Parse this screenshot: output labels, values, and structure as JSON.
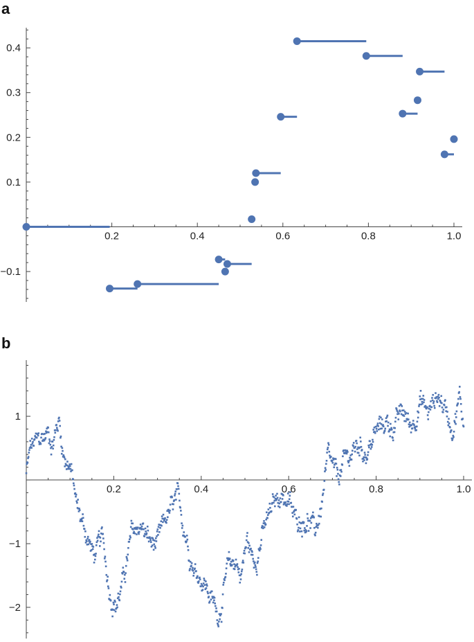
{
  "colors": {
    "series": "#4f74b2",
    "axis": "#444444",
    "text": "#222222"
  },
  "chart_data": [
    {
      "panel_label": "a",
      "type": "step-segments",
      "title": "",
      "xlabel": "",
      "ylabel": "",
      "xlim": [
        0,
        1.02
      ],
      "ylim": [
        -0.17,
        0.44
      ],
      "x_ticks": [
        0.2,
        0.4,
        0.6,
        0.8,
        1.0
      ],
      "x_tick_labels": [
        "0.2",
        "0.4",
        "0.6",
        "0.8",
        "1.0"
      ],
      "y_ticks": [
        -0.1,
        0.1,
        0.2,
        0.3,
        0.4
      ],
      "y_tick_labels": [
        "−0.1",
        "0.1",
        "0.2",
        "0.3",
        "0.4"
      ],
      "segments": [
        {
          "x_start": 0.0,
          "x_end": 0.195,
          "y": 0.0
        },
        {
          "x_start": 0.195,
          "x_end": 0.26,
          "y": -0.138
        },
        {
          "x_start": 0.26,
          "x_end": 0.45,
          "y": -0.128
        },
        {
          "x_start": 0.45,
          "x_end": 0.465,
          "y": -0.073
        },
        {
          "x_start": 0.465,
          "x_end": 0.47,
          "y": -0.1
        },
        {
          "x_start": 0.47,
          "x_end": 0.527,
          "y": -0.083
        },
        {
          "x_start": 0.527,
          "x_end": 0.535,
          "y": 0.017
        },
        {
          "x_start": 0.535,
          "x_end": 0.537,
          "y": 0.1
        },
        {
          "x_start": 0.537,
          "x_end": 0.595,
          "y": 0.12
        },
        {
          "x_start": 0.595,
          "x_end": 0.633,
          "y": 0.246
        },
        {
          "x_start": 0.633,
          "x_end": 0.795,
          "y": 0.415
        },
        {
          "x_start": 0.795,
          "x_end": 0.88,
          "y": 0.382
        },
        {
          "x_start": 0.88,
          "x_end": 0.915,
          "y": 0.253
        },
        {
          "x_start": 0.915,
          "x_end": 0.92,
          "y": 0.283
        },
        {
          "x_start": 0.92,
          "x_end": 0.978,
          "y": 0.347
        },
        {
          "x_start": 0.978,
          "x_end": 1.0,
          "y": 0.162
        },
        {
          "x_start": 1.0,
          "x_end": 1.0,
          "y": 0.196
        }
      ]
    },
    {
      "panel_label": "b",
      "type": "scatter",
      "title": "",
      "xlabel": "",
      "ylabel": "",
      "xlim": [
        0,
        1.0
      ],
      "ylim": [
        -2.45,
        1.85
      ],
      "x_ticks": [
        0.2,
        0.4,
        0.6,
        0.8,
        1.0
      ],
      "x_tick_labels": [
        "0.2",
        "0.4",
        "0.6",
        "0.8",
        "1.0"
      ],
      "y_ticks": [
        -2,
        -1,
        1
      ],
      "y_tick_labels": [
        "−2",
        "−1",
        "1"
      ],
      "n_points": 1000,
      "trend_knots": [
        [
          0.0,
          0.1
        ],
        [
          0.01,
          0.5
        ],
        [
          0.03,
          0.6
        ],
        [
          0.05,
          0.75
        ],
        [
          0.06,
          0.6
        ],
        [
          0.075,
          0.95
        ],
        [
          0.085,
          0.4
        ],
        [
          0.1,
          0.25
        ],
        [
          0.115,
          -0.4
        ],
        [
          0.13,
          -0.7
        ],
        [
          0.155,
          -1.2
        ],
        [
          0.175,
          -0.95
        ],
        [
          0.19,
          -1.7
        ],
        [
          0.205,
          -1.95
        ],
        [
          0.22,
          -1.65
        ],
        [
          0.24,
          -0.9
        ],
        [
          0.26,
          -0.7
        ],
        [
          0.285,
          -1.0
        ],
        [
          0.3,
          -1.05
        ],
        [
          0.32,
          -0.6
        ],
        [
          0.345,
          -0.35
        ],
        [
          0.36,
          -0.7
        ],
        [
          0.385,
          -1.4
        ],
        [
          0.405,
          -1.55
        ],
        [
          0.425,
          -1.9
        ],
        [
          0.44,
          -2.1
        ],
        [
          0.46,
          -1.45
        ],
        [
          0.48,
          -1.25
        ],
        [
          0.49,
          -1.5
        ],
        [
          0.505,
          -0.95
        ],
        [
          0.52,
          -1.3
        ],
        [
          0.54,
          -0.85
        ],
        [
          0.56,
          -0.5
        ],
        [
          0.58,
          -0.2
        ],
        [
          0.6,
          -0.35
        ],
        [
          0.615,
          -0.65
        ],
        [
          0.625,
          -0.6
        ],
        [
          0.645,
          -0.6
        ],
        [
          0.66,
          -0.85
        ],
        [
          0.675,
          -0.4
        ],
        [
          0.69,
          0.3
        ],
        [
          0.71,
          0.0
        ],
        [
          0.73,
          0.3
        ],
        [
          0.76,
          0.55
        ],
        [
          0.78,
          0.45
        ],
        [
          0.8,
          0.75
        ],
        [
          0.82,
          0.9
        ],
        [
          0.84,
          0.85
        ],
        [
          0.86,
          1.05
        ],
        [
          0.88,
          0.85
        ],
        [
          0.9,
          1.25
        ],
        [
          0.92,
          1.05
        ],
        [
          0.94,
          1.35
        ],
        [
          0.96,
          1.1
        ],
        [
          0.975,
          0.85
        ],
        [
          0.99,
          1.3
        ],
        [
          1.0,
          0.9
        ]
      ],
      "noise_amplitude": 0.12
    }
  ]
}
